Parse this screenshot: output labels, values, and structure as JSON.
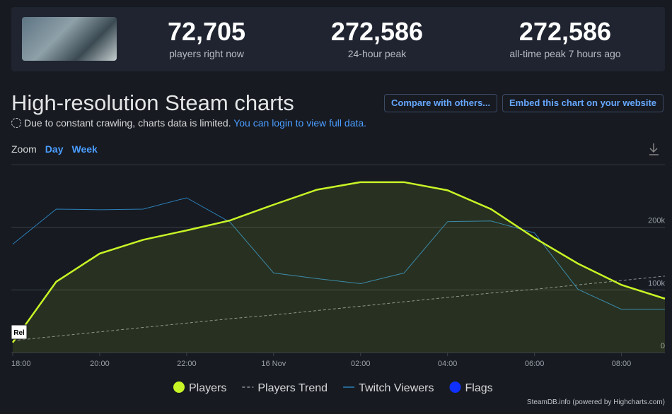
{
  "header": {
    "stats": [
      {
        "value": "72,705",
        "label": "players right now"
      },
      {
        "value": "272,586",
        "label": "24-hour peak"
      },
      {
        "value": "272,586",
        "label": "all-time peak 7 hours ago"
      }
    ]
  },
  "page": {
    "title": "High-resolution Steam charts",
    "buttons": [
      "Compare with others...",
      "Embed this chart on your website"
    ],
    "note": "Due to constant crawling, charts data is limited.",
    "note_link": "You can login to view full data.",
    "zoom": "Zoom",
    "zoom_options": [
      "Day",
      "Week"
    ],
    "credits": "SteamDB.info (powered by Highcharts.com)"
  },
  "chart_data": {
    "type": "line",
    "x": [
      0,
      1,
      2,
      3,
      4,
      5,
      6,
      7,
      8,
      9,
      10,
      11,
      12,
      13,
      14,
      15
    ],
    "xlim": [
      0,
      15
    ],
    "xticks": [
      {
        "value": 0,
        "label": "18:00"
      },
      {
        "value": 2,
        "label": "20:00"
      },
      {
        "value": 4,
        "label": "22:00"
      },
      {
        "value": 6,
        "label": "16 Nov"
      },
      {
        "value": 8,
        "label": "02:00"
      },
      {
        "value": 10,
        "label": "04:00"
      },
      {
        "value": 12,
        "label": "06:00"
      },
      {
        "value": 14,
        "label": "08:00"
      }
    ],
    "ylim": [
      0,
      300000
    ],
    "yticks": [
      0,
      {
        "value": 100000,
        "label": "100k"
      },
      {
        "value": 200000,
        "label": "200k"
      }
    ],
    "grid": true,
    "series": [
      {
        "name": "Players",
        "color": "#c8f526",
        "area": true,
        "values": [
          16000,
          113000,
          158000,
          180000,
          195000,
          211000,
          236000,
          260000,
          272000,
          272000,
          259000,
          229000,
          183000,
          142000,
          108000,
          86000
        ]
      },
      {
        "name": "Players Trend",
        "color": "#8a8f98",
        "dashed": true,
        "values": [
          19000,
          26000,
          33000,
          40000,
          47000,
          54000,
          60000,
          67000,
          74000,
          81000,
          88000,
          95000,
          101000,
          108000,
          115000,
          122000
        ]
      },
      {
        "name": "Twitch Viewers",
        "color": "#2b7fb8",
        "values": [
          173000,
          229000,
          228000,
          229000,
          247000,
          208000,
          127000,
          118000,
          110000,
          127000,
          209000,
          210000,
          191000,
          101000,
          69000,
          69000
        ]
      },
      {
        "name": "Flags",
        "color": "#1030ff",
        "values": [
          null,
          null,
          null,
          null,
          null,
          null,
          null,
          null,
          null,
          null,
          null,
          null,
          null,
          null,
          null,
          null
        ]
      }
    ],
    "annotations": [
      {
        "x": 0,
        "text": "Rel"
      }
    ]
  }
}
